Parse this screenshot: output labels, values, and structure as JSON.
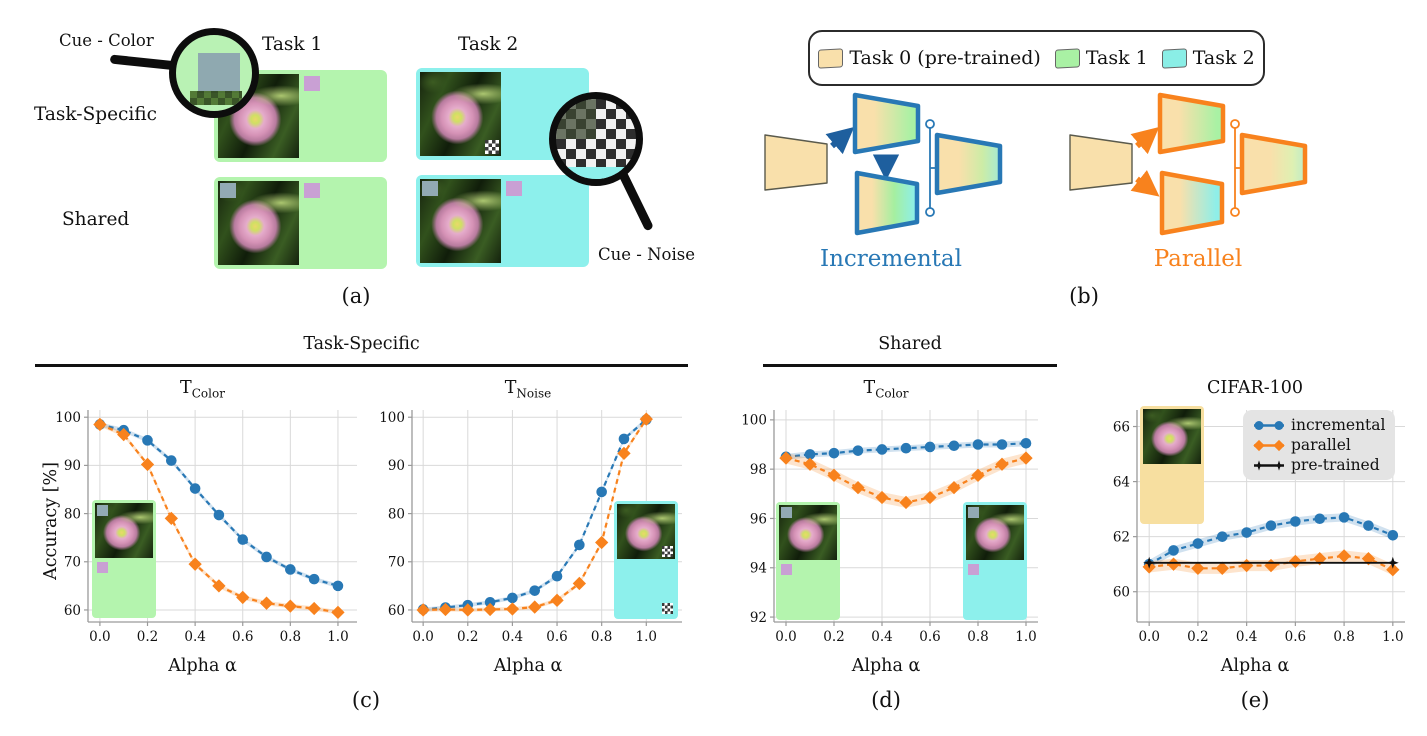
{
  "figure": {
    "headers": {
      "task_specific": "Task-Specific",
      "shared": "Shared"
    },
    "captions": {
      "a": "(a)",
      "b": "(b)",
      "c": "(c)",
      "d": "(d)",
      "e": "(e)"
    },
    "ylabel": "Accuracy [%]"
  },
  "panel_a": {
    "cue_color_label": "Cue - Color",
    "cue_noise_label": "Cue - Noise",
    "col_headers": [
      "Task 1",
      "Task 2"
    ],
    "row_headers": [
      "Task-Specific",
      "Shared"
    ]
  },
  "panel_b": {
    "legend": [
      {
        "label": "Task 0 (pre-trained)",
        "color": "#f9e0ab"
      },
      {
        "label": "Task 1",
        "color": "#a9f1a4"
      },
      {
        "label": "Task 2",
        "color": "#8aeee6"
      }
    ],
    "incremental_label": "Incremental",
    "parallel_label": "Parallel",
    "incremental_color": "#2878b5",
    "parallel_color": "#f8821d"
  },
  "chart_data": [
    {
      "id": "task-specific-t-color",
      "type": "line",
      "title": {
        "main": "T",
        "sub": "Color"
      },
      "xlabel": "Alpha α",
      "ylabel": "Accuracy [%]",
      "x": [
        0,
        0.1,
        0.2,
        0.3,
        0.4,
        0.5,
        0.6,
        0.7,
        0.8,
        0.9,
        1.0
      ],
      "xticks": [
        0,
        0.2,
        0.4,
        0.6,
        0.8,
        1.0
      ],
      "yticks": [
        60,
        70,
        80,
        90,
        100
      ],
      "xlim": [
        -0.05,
        1.08
      ],
      "ylim": [
        57.5,
        101.5
      ],
      "grid": true,
      "legend_position": "none",
      "series": [
        {
          "name": "incremental",
          "color": "#2878b5",
          "marker": "circle",
          "dash": true,
          "band": 0.45,
          "values": [
            98.5,
            97.3,
            95.2,
            91.0,
            85.2,
            79.7,
            74.6,
            71.0,
            68.4,
            66.4,
            65.0
          ]
        },
        {
          "name": "parallel",
          "color": "#f8821d",
          "marker": "diamond",
          "dash": true,
          "band": 0.45,
          "values": [
            98.5,
            96.4,
            90.2,
            79.0,
            69.5,
            65.0,
            62.6,
            61.4,
            60.8,
            60.3,
            59.5
          ]
        }
      ]
    },
    {
      "id": "task-specific-t-noise",
      "type": "line",
      "title": {
        "main": "T",
        "sub": "Noise"
      },
      "xlabel": "Alpha α",
      "ylabel": "",
      "x": [
        0,
        0.1,
        0.2,
        0.3,
        0.4,
        0.5,
        0.6,
        0.7,
        0.8,
        0.9,
        1.0
      ],
      "xticks": [
        0,
        0.2,
        0.4,
        0.6,
        0.8,
        1.0
      ],
      "yticks": [
        60,
        70,
        80,
        90,
        100
      ],
      "xlim": [
        -0.05,
        1.16
      ],
      "ylim": [
        57.5,
        101.5
      ],
      "grid": true,
      "legend_position": "none",
      "series": [
        {
          "name": "incremental",
          "color": "#2878b5",
          "marker": "circle",
          "dash": true,
          "band": 0.4,
          "values": [
            60.1,
            60.5,
            61.0,
            61.6,
            62.5,
            64.0,
            67.0,
            73.5,
            84.5,
            95.5,
            99.5
          ]
        },
        {
          "name": "parallel",
          "color": "#f8821d",
          "marker": "diamond",
          "dash": true,
          "band": 0.4,
          "values": [
            60.0,
            60.1,
            60.0,
            60.1,
            60.2,
            60.6,
            62.0,
            65.5,
            74.0,
            92.5,
            99.6
          ]
        }
      ]
    },
    {
      "id": "shared-t-color",
      "type": "line",
      "title": {
        "main": "T",
        "sub": "Color"
      },
      "xlabel": "Alpha α",
      "ylabel": "",
      "x": [
        0,
        0.1,
        0.2,
        0.3,
        0.4,
        0.5,
        0.6,
        0.7,
        0.8,
        0.9,
        1.0
      ],
      "xticks": [
        0,
        0.2,
        0.4,
        0.6,
        0.8,
        1.0
      ],
      "yticks": [
        92,
        94,
        96,
        98,
        100
      ],
      "xlim": [
        -0.05,
        1.05
      ],
      "ylim": [
        91.8,
        100.4
      ],
      "grid": true,
      "legend_position": "none",
      "series": [
        {
          "name": "incremental",
          "color": "#2878b5",
          "marker": "circle",
          "dash": true,
          "band": 0.12,
          "values": [
            98.5,
            98.6,
            98.65,
            98.75,
            98.8,
            98.85,
            98.9,
            98.95,
            99.0,
            99.0,
            99.05
          ]
        },
        {
          "name": "parallel",
          "color": "#f8821d",
          "marker": "diamond",
          "dash": true,
          "band": 0.22,
          "values": [
            98.45,
            98.2,
            97.75,
            97.25,
            96.85,
            96.65,
            96.85,
            97.25,
            97.75,
            98.2,
            98.45
          ]
        }
      ]
    },
    {
      "id": "cifar-100",
      "type": "line",
      "title": {
        "main": "CIFAR-100",
        "sub": ""
      },
      "xlabel": "Alpha α",
      "ylabel": "",
      "x": [
        0,
        0.1,
        0.2,
        0.3,
        0.4,
        0.5,
        0.6,
        0.7,
        0.8,
        0.9,
        1.0
      ],
      "xticks": [
        0,
        0.2,
        0.4,
        0.6,
        0.8,
        1.0
      ],
      "yticks": [
        60,
        62,
        64,
        66
      ],
      "xlim": [
        -0.05,
        1.05
      ],
      "ylim": [
        58.9,
        66.6
      ],
      "grid": true,
      "legend_position": "top-right",
      "series": [
        {
          "name": "incremental",
          "color": "#2878b5",
          "marker": "circle",
          "dash": true,
          "band": 0.15,
          "values": [
            61.0,
            61.5,
            61.75,
            62.0,
            62.15,
            62.4,
            62.55,
            62.65,
            62.7,
            62.4,
            62.05
          ]
        },
        {
          "name": "parallel",
          "color": "#f8821d",
          "marker": "diamond",
          "dash": true,
          "band": 0.2,
          "values": [
            60.9,
            61.0,
            60.85,
            60.85,
            60.95,
            60.95,
            61.1,
            61.2,
            61.3,
            61.2,
            60.8
          ]
        },
        {
          "name": "pre-trained",
          "color": "#111111",
          "marker": "star4",
          "dash": false,
          "band": 0,
          "lw": 1.8,
          "markers": "ends",
          "values": [
            61.05,
            61.05,
            61.05,
            61.05,
            61.05,
            61.05,
            61.05,
            61.05,
            61.05,
            61.05,
            61.05
          ]
        }
      ]
    }
  ]
}
